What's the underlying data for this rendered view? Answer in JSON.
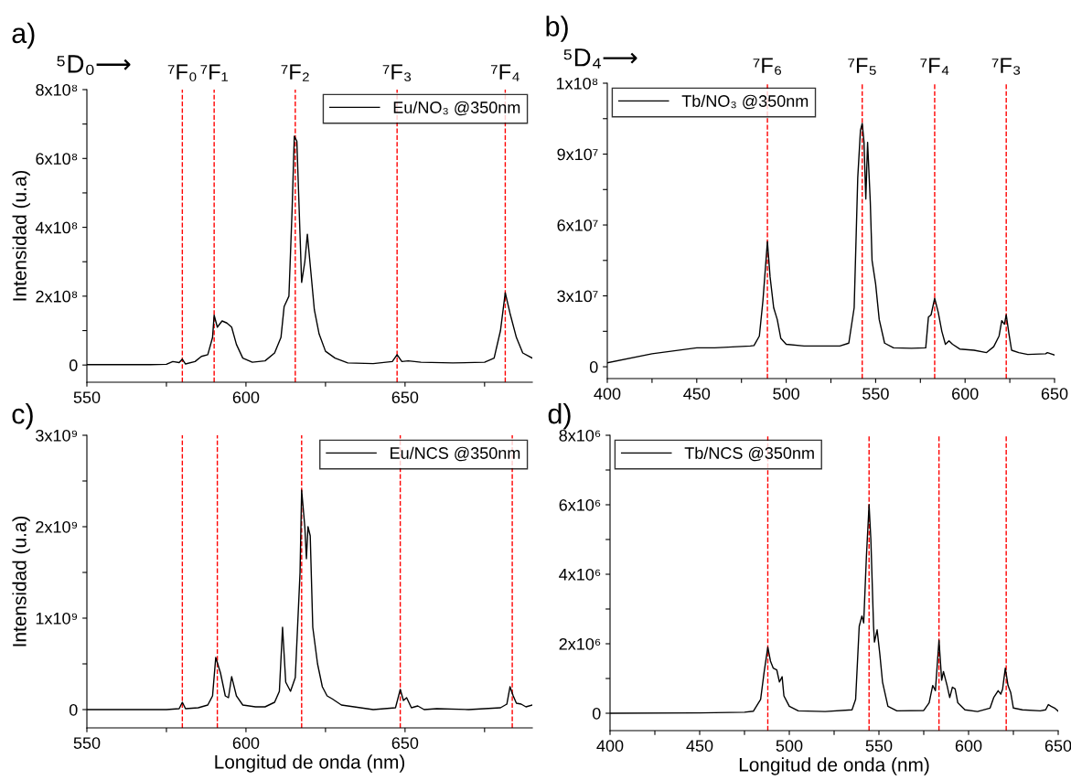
{
  "chart_data": [
    {
      "type": "line",
      "title": "a)",
      "ylabel": "Intensidad (u.a)",
      "annotations": [
        "⁵D₀⟶"
      ],
      "legend": "top right",
      "xlim": [
        550,
        690
      ],
      "ylim": [
        -50000000,
        800000000
      ],
      "xticks": [
        550,
        {
          "value": 575,
          "label": null
        },
        600,
        {
          "value": 625,
          "label": null
        },
        650,
        {
          "value": 675,
          "label": null
        }
      ],
      "yticks": [
        {
          "value": 0,
          "label": "0"
        },
        {
          "value": 100000000,
          "label": null
        },
        {
          "value": 200000000,
          "label": "2x10⁸"
        },
        {
          "value": 300000000,
          "label": null
        },
        {
          "value": 400000000,
          "label": "4x10⁸"
        },
        {
          "value": 500000000,
          "label": null
        },
        {
          "value": 600000000,
          "label": "6x10⁸"
        },
        {
          "value": 700000000,
          "label": null
        },
        {
          "value": 800000000,
          "label": "8x10⁸"
        }
      ],
      "ref_lines": [
        {
          "axis": "x",
          "value": 580,
          "label": "⁷F₀",
          "color": "#ff0000",
          "line_style": "dashed"
        },
        {
          "axis": "x",
          "value": 590,
          "label": "⁷F₁",
          "color": "#ff0000",
          "line_style": "dashed"
        },
        {
          "axis": "x",
          "value": 615.5,
          "label": "⁷F₂",
          "color": "#ff0000",
          "line_style": "dashed"
        },
        {
          "axis": "x",
          "value": 647.5,
          "label": "⁷F₃",
          "color": "#ff0000",
          "line_style": "dashed"
        },
        {
          "axis": "x",
          "value": 681.5,
          "label": "⁷F₄",
          "color": "#ff0000",
          "line_style": "dashed"
        }
      ],
      "series": [
        {
          "name": "Eu/NO₃ @350nm",
          "color": "#000000",
          "x": [
            550,
            570,
            575,
            577,
            579,
            580,
            581,
            584,
            586,
            588,
            589.5,
            590,
            591,
            592.5,
            594,
            595.5,
            597,
            599,
            602,
            606,
            609,
            611,
            612,
            613.5,
            614.5,
            615.2,
            616,
            617.5,
            618.5,
            619.3,
            620.5,
            621.5,
            623,
            625,
            628,
            632,
            640,
            646,
            647.5,
            649,
            651,
            655,
            665,
            675,
            678,
            680,
            681.5,
            683,
            685,
            687,
            690
          ],
          "values": [
            1000000,
            1000000,
            2000000,
            10000000,
            7000000,
            17000000,
            3000000,
            10000000,
            25000000,
            30000000,
            80000000,
            145000000,
            110000000,
            128000000,
            122000000,
            110000000,
            60000000,
            20000000,
            8000000,
            12000000,
            35000000,
            80000000,
            170000000,
            200000000,
            450000000,
            665000000,
            650000000,
            240000000,
            300000000,
            380000000,
            260000000,
            160000000,
            90000000,
            40000000,
            20000000,
            6000000,
            4000000,
            10000000,
            30000000,
            10000000,
            12000000,
            8000000,
            6000000,
            8000000,
            20000000,
            100000000,
            210000000,
            150000000,
            80000000,
            35000000,
            20000000
          ]
        }
      ]
    },
    {
      "type": "line",
      "title": "b)",
      "annotations": [
        "⁵D₄⟶"
      ],
      "legend": "top left",
      "xlim": [
        400,
        650
      ],
      "ylim": [
        -5000000,
        120000000
      ],
      "xticks": [
        400,
        {
          "value": 425,
          "label": null
        },
        450,
        {
          "value": 475,
          "label": null
        },
        500,
        {
          "value": 525,
          "label": null
        },
        550,
        {
          "value": 575,
          "label": null
        },
        600,
        {
          "value": 625,
          "label": null
        },
        650
      ],
      "yticks": [
        {
          "value": 0,
          "label": "0"
        },
        {
          "value": 15000000,
          "label": null
        },
        {
          "value": 30000000,
          "label": "3x10⁷"
        },
        {
          "value": 45000000,
          "label": null
        },
        {
          "value": 60000000,
          "label": "6x10⁷"
        },
        {
          "value": 75000000,
          "label": null
        },
        {
          "value": 90000000,
          "label": "9x10⁷"
        },
        {
          "value": 105000000,
          "label": null
        },
        {
          "value": 120000000,
          "label": "1x10⁸"
        }
      ],
      "ref_lines": [
        {
          "axis": "x",
          "value": 489.5,
          "label": "⁷F₆",
          "color": "#ff0000",
          "line_style": "dashed"
        },
        {
          "axis": "x",
          "value": 542.5,
          "label": "⁷F₅",
          "color": "#ff0000",
          "line_style": "dashed"
        },
        {
          "axis": "x",
          "value": 583,
          "label": "⁷F₄",
          "color": "#ff0000",
          "line_style": "dashed"
        },
        {
          "axis": "x",
          "value": 623,
          "label": "⁷F₃",
          "color": "#ff0000",
          "line_style": "dashed"
        }
      ],
      "series": [
        {
          "name": "Tb/NO₃ @350nm",
          "color": "#000000",
          "x": [
            400,
            425,
            450,
            460,
            480,
            482,
            485,
            487,
            489.5,
            491,
            493,
            495,
            497,
            500,
            510,
            530,
            535,
            538,
            540,
            541.5,
            542.5,
            543.5,
            544.5,
            545.5,
            547,
            548,
            550,
            552,
            555,
            560,
            570,
            578,
            579.5,
            581,
            583,
            585,
            587,
            589,
            591,
            593,
            597,
            605,
            612,
            616,
            619,
            620.5,
            622,
            623,
            624.5,
            626,
            630,
            635,
            645,
            646,
            650
          ],
          "values": [
            1700000,
            5500000,
            8000000,
            8000000,
            8800000,
            9000000,
            13000000,
            28000000,
            53000000,
            38000000,
            25000000,
            20000000,
            12000000,
            9500000,
            8800000,
            8800000,
            10000000,
            25000000,
            80000000,
            100000000,
            103000000,
            95000000,
            71000000,
            95000000,
            70000000,
            45000000,
            35000000,
            20000000,
            10000000,
            8000000,
            7800000,
            8000000,
            21000000,
            22000000,
            29000000,
            23000000,
            15000000,
            9500000,
            11000000,
            9500000,
            7500000,
            7000000,
            6000000,
            8500000,
            13000000,
            19500000,
            18000000,
            22000000,
            14000000,
            7000000,
            6000000,
            5200000,
            5500000,
            6000000,
            5000000
          ]
        }
      ]
    },
    {
      "type": "line",
      "title": "c)",
      "xlabel": "Longitud de onda (nm)",
      "ylabel": "Intensidad (u.a)",
      "legend": "top right",
      "xlim": [
        550,
        690
      ],
      "ylim": [
        -200000000,
        3000000000
      ],
      "xticks": [
        550,
        {
          "value": 575,
          "label": null
        },
        600,
        {
          "value": 625,
          "label": null
        },
        650,
        {
          "value": 675,
          "label": null
        }
      ],
      "yticks": [
        {
          "value": 0,
          "label": "0"
        },
        {
          "value": 500000000,
          "label": null
        },
        {
          "value": 1000000000,
          "label": "1x10⁹"
        },
        {
          "value": 1500000000,
          "label": null
        },
        {
          "value": 2000000000,
          "label": "2x10⁹"
        },
        {
          "value": 2500000000,
          "label": null
        },
        {
          "value": 3000000000,
          "label": "3x10⁹"
        }
      ],
      "ref_lines": [
        {
          "axis": "x",
          "value": 580,
          "color": "#ff0000",
          "line_style": "dashed"
        },
        {
          "axis": "x",
          "value": 591,
          "color": "#ff0000",
          "line_style": "dashed"
        },
        {
          "axis": "x",
          "value": 617.5,
          "color": "#ff0000",
          "line_style": "dashed"
        },
        {
          "axis": "x",
          "value": 648.5,
          "color": "#ff0000",
          "line_style": "dashed"
        },
        {
          "axis": "x",
          "value": 683.7,
          "color": "#ff0000",
          "line_style": "dashed"
        }
      ],
      "series": [
        {
          "name": "Eu/NCS @350nm",
          "color": "#000000",
          "x": [
            550,
            575,
            579,
            580,
            581,
            585,
            588,
            589.5,
            590.5,
            592,
            593.5,
            594.5,
            595.5,
            597,
            599,
            603,
            606,
            609,
            610.5,
            611.5,
            612.5,
            614,
            615.5,
            617,
            617.5,
            618.5,
            619,
            619.5,
            620.2,
            621,
            622.5,
            624,
            625.5,
            627,
            630,
            640,
            647,
            648.5,
            649.5,
            650.5,
            652,
            654,
            656,
            660,
            670,
            680,
            682,
            683,
            684,
            685,
            686.5,
            688,
            690
          ],
          "values": [
            0,
            0,
            10000000,
            80000000,
            10000000,
            20000000,
            50000000,
            150000000,
            570000000,
            400000000,
            150000000,
            130000000,
            360000000,
            150000000,
            50000000,
            30000000,
            30000000,
            80000000,
            200000000,
            900000000,
            300000000,
            200000000,
            350000000,
            1500000000,
            2400000000,
            2000000000,
            1650000000,
            2000000000,
            1900000000,
            900000000,
            500000000,
            250000000,
            150000000,
            120000000,
            50000000,
            0,
            20000000,
            220000000,
            100000000,
            130000000,
            20000000,
            40000000,
            0,
            10000000,
            0,
            20000000,
            60000000,
            250000000,
            150000000,
            70000000,
            60000000,
            30000000,
            50000000
          ]
        }
      ]
    },
    {
      "type": "line",
      "title": "d)",
      "xlabel": "Longitud de onda (nm)",
      "legend": "top left",
      "xlim": [
        400,
        650
      ],
      "ylim": [
        -500000,
        8000000
      ],
      "xticks": [
        400,
        {
          "value": 425,
          "label": null
        },
        450,
        {
          "value": 475,
          "label": null
        },
        500,
        {
          "value": 525,
          "label": null
        },
        550,
        {
          "value": 575,
          "label": null
        },
        600,
        {
          "value": 625,
          "label": null
        },
        650
      ],
      "yticks": [
        {
          "value": 0,
          "label": "0"
        },
        {
          "value": 1000000,
          "label": null
        },
        {
          "value": 2000000,
          "label": "2x10⁶"
        },
        {
          "value": 3000000,
          "label": null
        },
        {
          "value": 4000000,
          "label": "4x10⁶"
        },
        {
          "value": 5000000,
          "label": null
        },
        {
          "value": 6000000,
          "label": "6x10⁶"
        },
        {
          "value": 7000000,
          "label": null
        },
        {
          "value": 8000000,
          "label": "8x10⁶"
        }
      ],
      "ref_lines": [
        {
          "axis": "x",
          "value": 488,
          "color": "#ff0000",
          "line_style": "dashed"
        },
        {
          "axis": "x",
          "value": 544.5,
          "color": "#ff0000",
          "line_style": "dashed"
        },
        {
          "axis": "x",
          "value": 583.5,
          "color": "#ff0000",
          "line_style": "dashed"
        },
        {
          "axis": "x",
          "value": 621,
          "color": "#ff0000",
          "line_style": "dashed"
        }
      ],
      "series": [
        {
          "name": "Tb/NCS @350nm",
          "color": "#000000",
          "x": [
            400,
            450,
            475,
            480,
            484,
            486,
            488,
            489.5,
            491,
            493,
            494.5,
            496,
            497,
            500,
            505,
            520,
            535,
            537,
            539,
            540.5,
            541.5,
            543,
            544.5,
            545.5,
            547,
            547.5,
            549,
            550.5,
            552,
            555,
            560,
            575,
            578,
            580,
            581.5,
            583.5,
            585,
            586,
            588,
            589.5,
            591,
            592.5,
            594,
            598,
            605,
            612,
            614,
            616.5,
            618,
            619,
            620.5,
            622,
            623.5,
            625,
            630,
            640,
            643,
            644.5,
            646,
            648,
            650
          ],
          "values": [
            0,
            10000,
            30000,
            60000,
            400000,
            1200000,
            1900000,
            1500000,
            1300000,
            1250000,
            900000,
            1050000,
            500000,
            200000,
            70000,
            50000,
            100000,
            400000,
            2500000,
            2800000,
            2600000,
            4500000,
            6000000,
            5000000,
            2500000,
            2050000,
            2400000,
            1700000,
            900000,
            200000,
            70000,
            80000,
            300000,
            800000,
            650000,
            2100000,
            950000,
            1200000,
            800000,
            450000,
            750000,
            700000,
            300000,
            100000,
            50000,
            150000,
            450000,
            650000,
            550000,
            700000,
            1300000,
            800000,
            600000,
            150000,
            100000,
            70000,
            100000,
            250000,
            200000,
            150000,
            60000
          ]
        }
      ]
    }
  ]
}
